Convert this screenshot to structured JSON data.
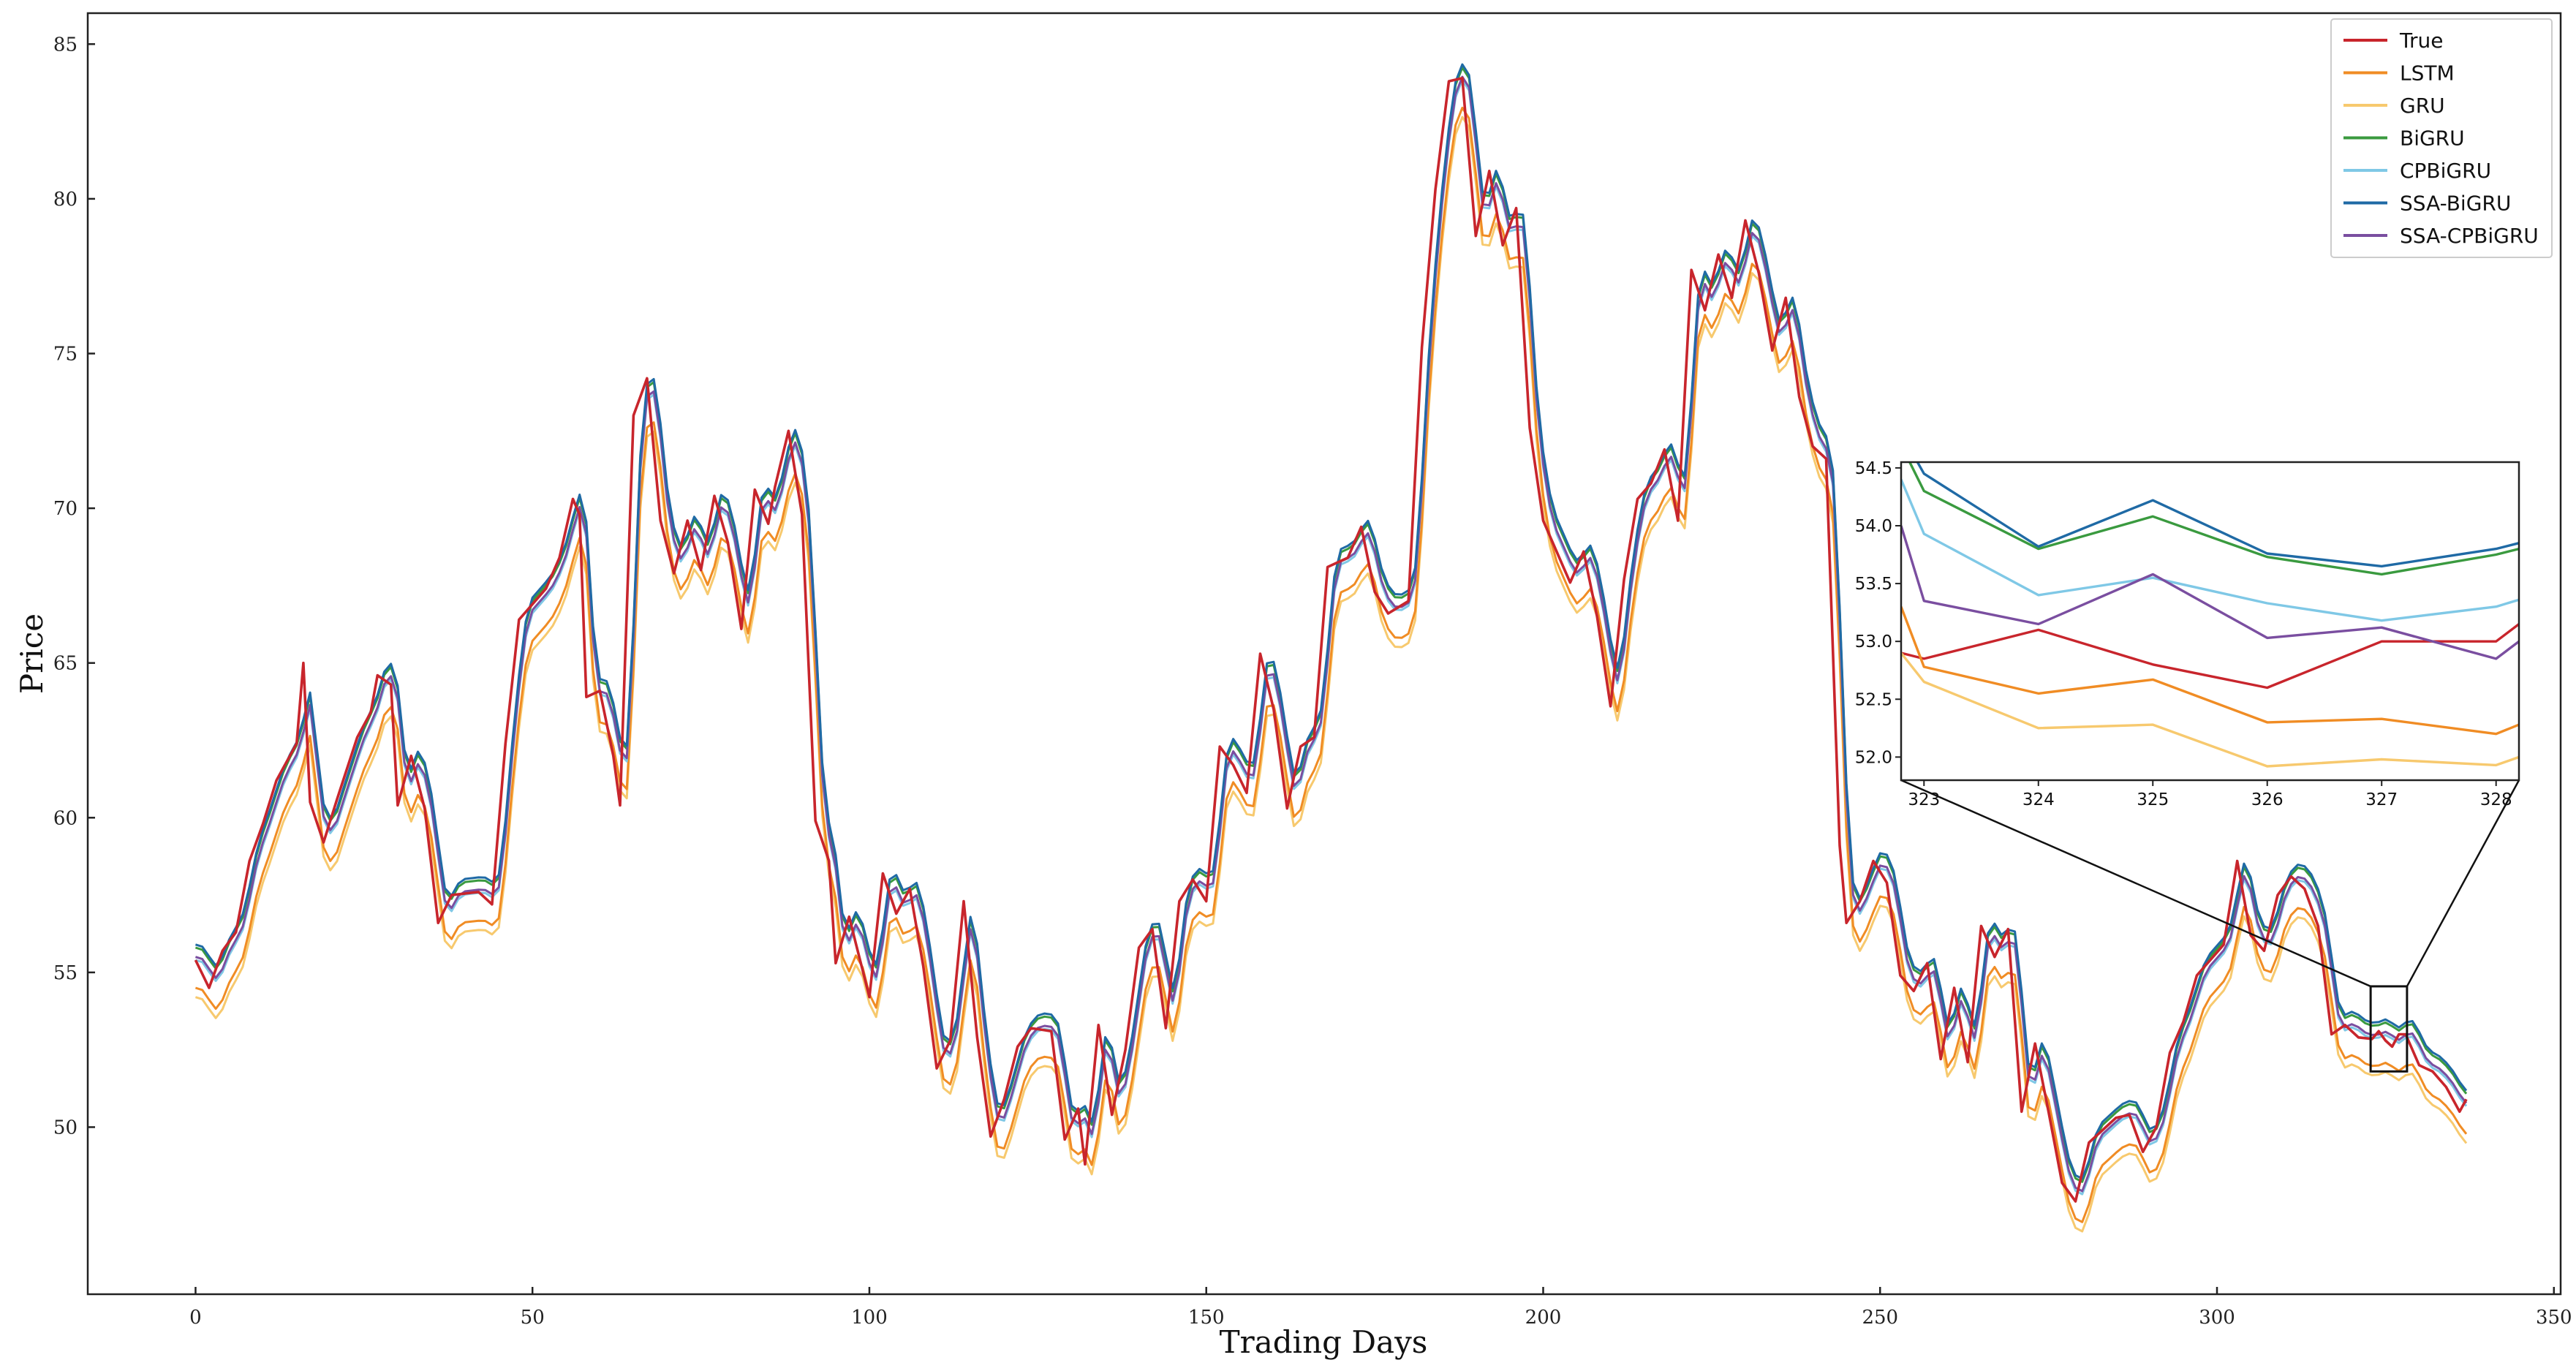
{
  "chart_data": {
    "type": "line",
    "title": "",
    "xlabel": "Trading Days",
    "ylabel": "Price",
    "xlim": [
      -16,
      351
    ],
    "ylim": [
      44.6,
      86.0
    ],
    "xticks": [
      0,
      50,
      100,
      150,
      200,
      250,
      300,
      350
    ],
    "yticks": [
      50,
      55,
      60,
      65,
      70,
      75,
      80,
      85
    ],
    "grid": false,
    "legend_position": "top-right",
    "series": [
      {
        "name": "True",
        "color": "#c8252c",
        "offset": 0.0
      },
      {
        "name": "LSTM",
        "color": "#f08c24",
        "offset": -0.9
      },
      {
        "name": "GRU",
        "color": "#f7c96e",
        "offset": -1.2
      },
      {
        "name": "BiGRU",
        "color": "#3a9a3f",
        "offset": 0.4
      },
      {
        "name": "CPBiGRU",
        "color": "#7fc8e6",
        "offset": 0.0
      },
      {
        "name": "SSA-BiGRU",
        "color": "#1f6aa5",
        "offset": 0.5
      },
      {
        "name": "SSA-CPBiGRU",
        "color": "#7a4ea0",
        "offset": 0.1
      }
    ],
    "true_keypoints": [
      [
        0,
        55.4
      ],
      [
        2,
        54.5
      ],
      [
        4,
        55.7
      ],
      [
        6,
        56.3
      ],
      [
        8,
        58.6
      ],
      [
        10,
        59.8
      ],
      [
        12,
        61.2
      ],
      [
        15,
        62.4
      ],
      [
        16,
        65.0
      ],
      [
        17,
        60.5
      ],
      [
        19,
        59.2
      ],
      [
        21,
        60.6
      ],
      [
        24,
        62.6
      ],
      [
        26,
        63.4
      ],
      [
        27,
        64.6
      ],
      [
        29,
        64.3
      ],
      [
        30,
        60.4
      ],
      [
        32,
        62.0
      ],
      [
        34,
        60.3
      ],
      [
        36,
        56.6
      ],
      [
        38,
        57.5
      ],
      [
        42,
        57.6
      ],
      [
        44,
        57.2
      ],
      [
        46,
        62.4
      ],
      [
        48,
        66.4
      ],
      [
        52,
        67.4
      ],
      [
        54,
        68.4
      ],
      [
        56,
        70.3
      ],
      [
        57,
        69.8
      ],
      [
        58,
        63.9
      ],
      [
        60,
        64.1
      ],
      [
        62,
        62.0
      ],
      [
        63,
        60.4
      ],
      [
        65,
        73.0
      ],
      [
        67,
        74.2
      ],
      [
        69,
        69.6
      ],
      [
        71,
        67.9
      ],
      [
        73,
        69.6
      ],
      [
        75,
        68.0
      ],
      [
        77,
        70.4
      ],
      [
        79,
        68.9
      ],
      [
        81,
        66.1
      ],
      [
        83,
        70.6
      ],
      [
        85,
        69.5
      ],
      [
        86,
        70.7
      ],
      [
        88,
        72.5
      ],
      [
        90,
        69.8
      ],
      [
        92,
        59.9
      ],
      [
        94,
        58.6
      ],
      [
        95,
        55.3
      ],
      [
        97,
        56.8
      ],
      [
        100,
        54.2
      ],
      [
        102,
        58.2
      ],
      [
        104,
        56.9
      ],
      [
        106,
        57.7
      ],
      [
        108,
        55.2
      ],
      [
        110,
        51.9
      ],
      [
        112,
        52.8
      ],
      [
        114,
        57.3
      ],
      [
        116,
        52.9
      ],
      [
        118,
        49.7
      ],
      [
        120,
        50.9
      ],
      [
        122,
        52.6
      ],
      [
        124,
        53.2
      ],
      [
        127,
        53.1
      ],
      [
        129,
        49.6
      ],
      [
        131,
        50.6
      ],
      [
        132,
        48.8
      ],
      [
        134,
        53.3
      ],
      [
        136,
        50.4
      ],
      [
        138,
        52.5
      ],
      [
        140,
        55.8
      ],
      [
        142,
        56.4
      ],
      [
        144,
        53.2
      ],
      [
        146,
        57.3
      ],
      [
        148,
        58.0
      ],
      [
        150,
        57.3
      ],
      [
        152,
        62.3
      ],
      [
        154,
        61.7
      ],
      [
        156,
        60.8
      ],
      [
        158,
        65.3
      ],
      [
        160,
        63.5
      ],
      [
        162,
        60.3
      ],
      [
        164,
        62.3
      ],
      [
        166,
        62.6
      ],
      [
        168,
        68.1
      ],
      [
        171,
        68.4
      ],
      [
        173,
        69.4
      ],
      [
        175,
        67.3
      ],
      [
        177,
        66.6
      ],
      [
        180,
        67.0
      ],
      [
        182,
        75.2
      ],
      [
        184,
        80.3
      ],
      [
        186,
        83.8
      ],
      [
        188,
        83.9
      ],
      [
        190,
        78.8
      ],
      [
        192,
        80.9
      ],
      [
        194,
        78.5
      ],
      [
        196,
        79.7
      ],
      [
        198,
        72.6
      ],
      [
        200,
        69.6
      ],
      [
        202,
        68.6
      ],
      [
        204,
        67.6
      ],
      [
        206,
        68.6
      ],
      [
        208,
        66.5
      ],
      [
        210,
        63.6
      ],
      [
        212,
        67.7
      ],
      [
        214,
        70.3
      ],
      [
        216,
        70.8
      ],
      [
        218,
        71.9
      ],
      [
        220,
        69.6
      ],
      [
        222,
        77.7
      ],
      [
        224,
        76.4
      ],
      [
        226,
        78.2
      ],
      [
        228,
        76.8
      ],
      [
        230,
        79.3
      ],
      [
        232,
        77.6
      ],
      [
        234,
        75.1
      ],
      [
        236,
        76.8
      ],
      [
        238,
        73.6
      ],
      [
        240,
        72.0
      ],
      [
        242,
        71.6
      ],
      [
        244,
        59.1
      ],
      [
        245,
        56.6
      ],
      [
        247,
        57.3
      ],
      [
        249,
        58.6
      ],
      [
        251,
        57.9
      ],
      [
        253,
        54.9
      ],
      [
        255,
        54.4
      ],
      [
        257,
        55.3
      ],
      [
        259,
        52.2
      ],
      [
        261,
        54.5
      ],
      [
        263,
        52.1
      ],
      [
        265,
        56.5
      ],
      [
        267,
        55.5
      ],
      [
        269,
        56.4
      ],
      [
        271,
        50.5
      ],
      [
        273,
        52.7
      ],
      [
        275,
        50.5
      ],
      [
        277,
        48.2
      ],
      [
        279,
        47.6
      ],
      [
        281,
        49.5
      ],
      [
        283,
        49.9
      ],
      [
        285,
        50.3
      ],
      [
        287,
        50.4
      ],
      [
        289,
        49.2
      ],
      [
        291,
        50.0
      ],
      [
        293,
        52.4
      ],
      [
        295,
        53.4
      ],
      [
        297,
        54.9
      ],
      [
        299,
        55.4
      ],
      [
        301,
        55.9
      ],
      [
        303,
        58.6
      ],
      [
        305,
        56.2
      ],
      [
        307,
        55.7
      ],
      [
        309,
        57.5
      ],
      [
        311,
        58.1
      ],
      [
        313,
        57.7
      ],
      [
        315,
        56.5
      ],
      [
        317,
        53.0
      ],
      [
        319,
        53.3
      ],
      [
        321,
        52.9
      ],
      [
        323,
        52.85
      ],
      [
        324,
        53.1
      ],
      [
        325,
        52.8
      ],
      [
        326,
        52.6
      ],
      [
        327,
        53.0
      ],
      [
        328,
        53.0
      ],
      [
        330,
        52.0
      ],
      [
        332,
        51.8
      ],
      [
        334,
        51.3
      ],
      [
        336,
        50.5
      ],
      [
        337,
        50.9
      ]
    ],
    "inset": {
      "xlim": [
        322.8,
        328.2
      ],
      "ylim": [
        51.8,
        54.55
      ],
      "xticks": [
        323,
        324,
        325,
        326,
        327,
        328
      ],
      "yticks": [
        52.0,
        52.5,
        53.0,
        53.5,
        54.0,
        54.5
      ],
      "series": [
        {
          "name": "True",
          "x": [
            322.8,
            323,
            324,
            325,
            326,
            327,
            328,
            328.2
          ],
          "y": [
            52.9,
            52.85,
            53.1,
            52.8,
            52.6,
            53.0,
            53.0,
            53.15
          ]
        },
        {
          "name": "LSTM",
          "x": [
            322.8,
            323,
            324,
            325,
            326,
            327,
            328,
            328.2
          ],
          "y": [
            53.3,
            52.78,
            52.55,
            52.67,
            52.3,
            52.33,
            52.2,
            52.28
          ]
        },
        {
          "name": "GRU",
          "x": [
            322.8,
            323,
            324,
            325,
            326,
            327,
            328,
            328.2
          ],
          "y": [
            52.9,
            52.65,
            52.25,
            52.28,
            51.92,
            51.98,
            51.93,
            52.0
          ]
        },
        {
          "name": "BiGRU",
          "x": [
            322.8,
            323,
            324,
            325,
            326,
            327,
            328,
            328.2
          ],
          "y": [
            54.7,
            54.3,
            53.8,
            54.08,
            53.73,
            53.58,
            53.75,
            53.8
          ]
        },
        {
          "name": "CPBiGRU",
          "x": [
            322.8,
            323,
            324,
            325,
            326,
            327,
            328,
            328.2
          ],
          "y": [
            54.4,
            53.93,
            53.4,
            53.55,
            53.33,
            53.18,
            53.3,
            53.36
          ]
        },
        {
          "name": "SSA-BiGRU",
          "x": [
            322.8,
            323,
            324,
            325,
            326,
            327,
            328,
            328.2
          ],
          "y": [
            54.8,
            54.45,
            53.82,
            54.22,
            53.76,
            53.65,
            53.8,
            53.85
          ]
        },
        {
          "name": "SSA-CPBiGRU",
          "x": [
            322.8,
            323,
            324,
            325,
            326,
            327,
            328,
            328.2
          ],
          "y": [
            54.0,
            53.35,
            53.15,
            53.58,
            53.03,
            53.12,
            52.85,
            53.0
          ]
        }
      ]
    }
  }
}
